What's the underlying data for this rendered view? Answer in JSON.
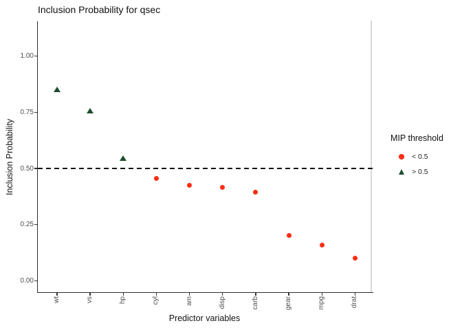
{
  "chart_data": {
    "type": "scatter",
    "title": "Inclusion Probability for qsec",
    "xlabel": "Predictor variables",
    "ylabel": "Inclusion Probability",
    "categories": [
      "wt",
      "vs",
      "hp",
      "cyl",
      "am",
      "disp",
      "carb",
      "gear",
      "mpg",
      "drat"
    ],
    "values": [
      0.85,
      0.755,
      0.545,
      0.455,
      0.425,
      0.415,
      0.395,
      0.2,
      0.16,
      0.1
    ],
    "groups": [
      "> 0.5",
      "> 0.5",
      "> 0.5",
      "< 0.5",
      "< 0.5",
      "< 0.5",
      "< 0.5",
      "< 0.5",
      "< 0.5",
      "< 0.5"
    ],
    "threshold": 0.5,
    "threshold_line_style": "dashed",
    "ylim": [
      0,
      1
    ],
    "yticks": [
      0.0,
      0.25,
      0.5,
      0.75,
      1.0
    ],
    "ytick_labels": [
      "0.00",
      "0.25",
      "0.50",
      "0.75",
      "1.00"
    ],
    "grid": false,
    "legend": {
      "title": "MIP threshold",
      "position": "right",
      "items": [
        {
          "label": "< 0.5",
          "marker": "circle",
          "color": "#FA2D12"
        },
        {
          "label": "> 0.5",
          "marker": "triangle",
          "color": "#1E4D2F"
        }
      ]
    },
    "colors": {
      "below_threshold": "#FA2D12",
      "above_threshold": "#1E4D2F",
      "axis": "#2b2b2b",
      "panel_right_border": "#D9D9D9",
      "threshold_line": "#111111"
    }
  }
}
